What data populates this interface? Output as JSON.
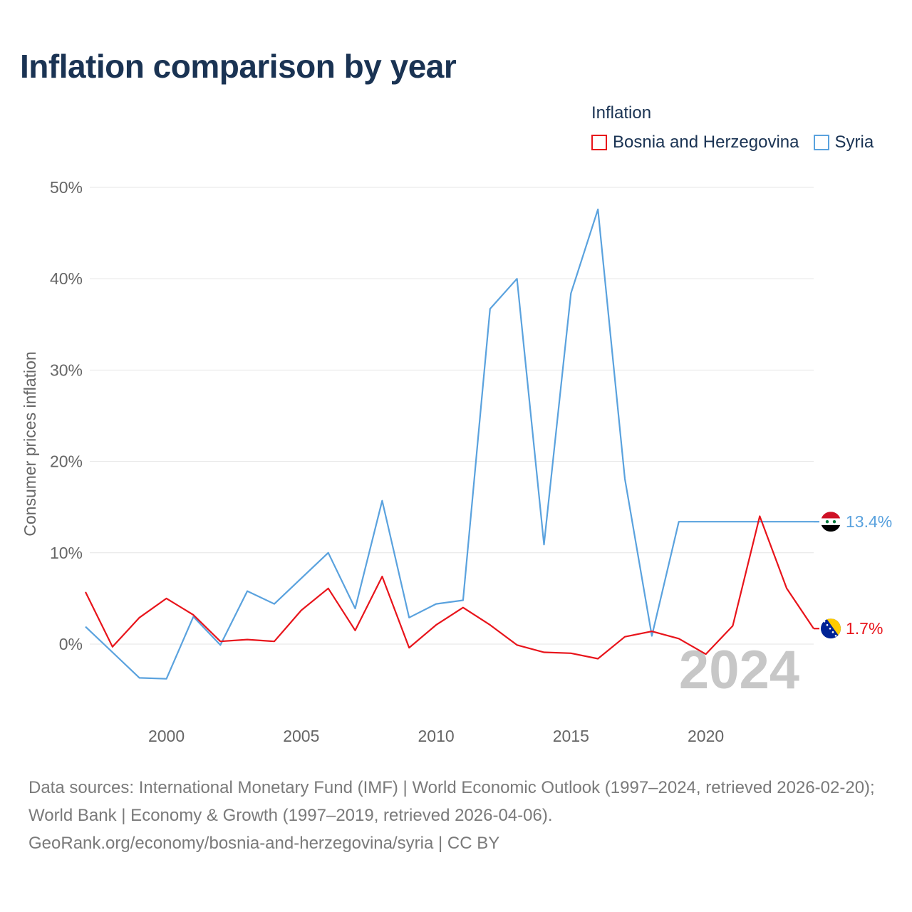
{
  "title": "Inflation comparison by year",
  "legend": {
    "title": "Inflation",
    "items": [
      {
        "name": "Bosnia and Herzegovina",
        "color": "#e8141b"
      },
      {
        "name": "Syria",
        "color": "#5aa2de"
      }
    ]
  },
  "footer": {
    "line1": "Data sources: International Monetary Fund (IMF) | World Economic Outlook (1997–2024, retrieved 2026-02-20); World Bank | Economy & Growth (1997–2019, retrieved 2026-04-06).",
    "line2": "GeoRank.org/economy/bosnia-and-herzegovina/syria | CC BY"
  },
  "chart_data": {
    "type": "line",
    "ylabel": "Consumer prices inflation",
    "xlabel": "",
    "xlim": [
      1997,
      2024
    ],
    "ylim": [
      -8,
      50
    ],
    "yticks": [
      0,
      10,
      20,
      30,
      40,
      50
    ],
    "ytick_labels": [
      "0%",
      "10%",
      "20%",
      "30%",
      "40%",
      "50%"
    ],
    "xticks": [
      2000,
      2005,
      2010,
      2015,
      2020
    ],
    "xtick_labels": [
      "2000",
      "2005",
      "2010",
      "2015",
      "2020"
    ],
    "current_year": "2024",
    "x": [
      1997,
      1998,
      1999,
      2000,
      2001,
      2002,
      2003,
      2004,
      2005,
      2006,
      2007,
      2008,
      2009,
      2010,
      2011,
      2012,
      2013,
      2014,
      2015,
      2016,
      2017,
      2018,
      2019,
      2020,
      2021,
      2022,
      2023,
      2024
    ],
    "series": [
      {
        "name": "Bosnia and Herzegovina",
        "color": "#e8141b",
        "end_label": "1.7%",
        "flag": "bosnia-flag",
        "values": [
          5.7,
          -0.3,
          2.9,
          5.0,
          3.2,
          0.3,
          0.5,
          0.3,
          3.7,
          6.1,
          1.5,
          7.4,
          -0.4,
          2.1,
          4.0,
          2.1,
          -0.1,
          -0.9,
          -1.0,
          -1.6,
          0.8,
          1.4,
          0.6,
          -1.1,
          2.0,
          14.0,
          6.1,
          1.7
        ]
      },
      {
        "name": "Syria",
        "color": "#5aa2de",
        "end_label": "13.4%",
        "flag": "syria-flag",
        "values": [
          1.9,
          -0.9,
          -3.7,
          -3.8,
          3.0,
          -0.1,
          5.8,
          4.4,
          7.2,
          10.0,
          3.9,
          15.7,
          2.9,
          4.4,
          4.8,
          36.7,
          40.0,
          10.9,
          38.4,
          47.6,
          18.1,
          0.9,
          13.4,
          13.4,
          13.4,
          13.4,
          13.4,
          13.4
        ]
      }
    ]
  }
}
